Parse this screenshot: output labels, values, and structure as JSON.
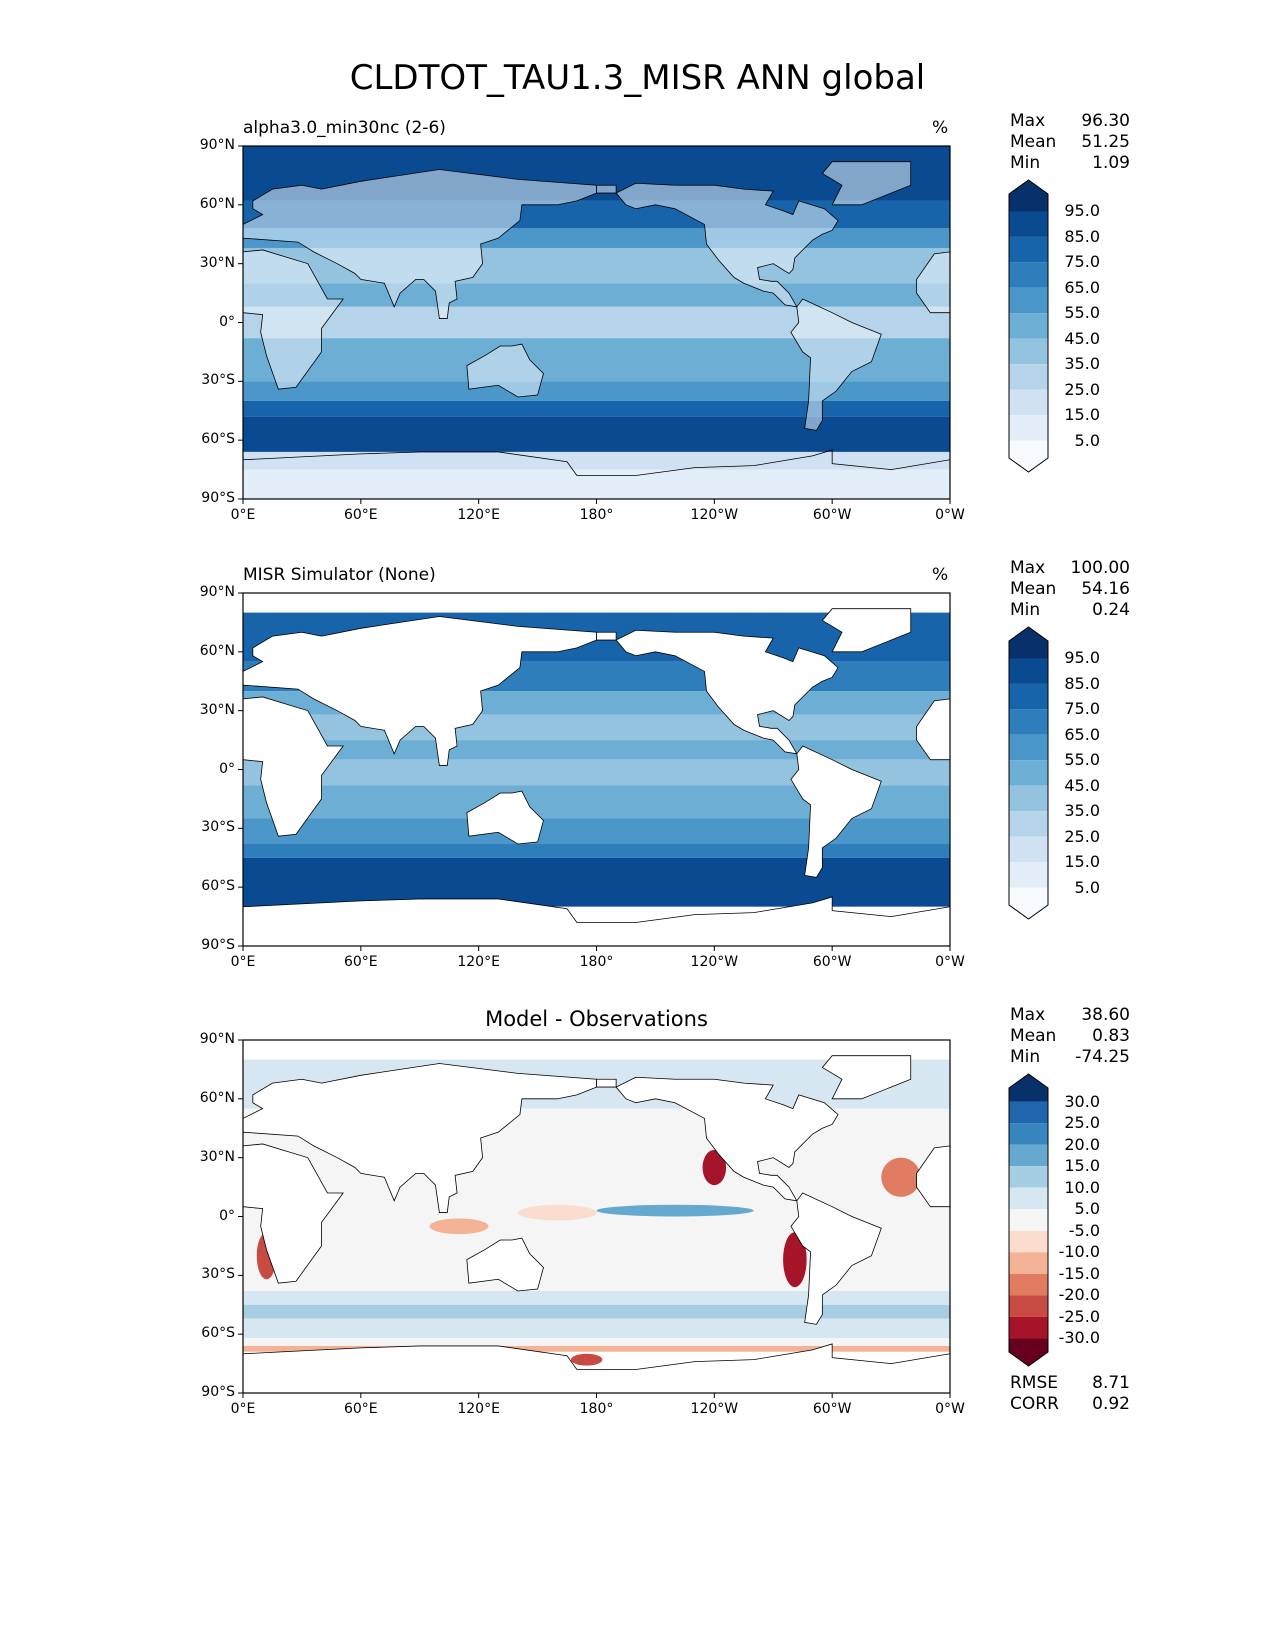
{
  "title": "CLDTOT_TAU1.3_MISR ANN global",
  "xticks": [
    "0°E",
    "60°E",
    "120°E",
    "180°",
    "120°W",
    "60°W",
    "0°W"
  ],
  "yticks": [
    "90°N",
    "60°N",
    "30°N",
    "0°",
    "30°S",
    "60°S",
    "90°S"
  ],
  "panels": [
    {
      "left_title": "alpha3.0_min30nc (2-6)",
      "center_title": "",
      "units": "%",
      "stats": [
        {
          "label": "Max",
          "value": "96.30"
        },
        {
          "label": "Mean",
          "value": "51.25"
        },
        {
          "label": "Min",
          "value": "1.09"
        }
      ],
      "colorbar": {
        "labels": [
          "95.0",
          "85.0",
          "75.0",
          "65.0",
          "55.0",
          "45.0",
          "35.0",
          "25.0",
          "15.0",
          "5.0"
        ],
        "colors": [
          "#08306b",
          "#0a4a90",
          "#1864aa",
          "#2f7ebc",
          "#4b97c9",
          "#6daed5",
          "#93c3df",
          "#b5d4e9",
          "#cfe1f2",
          "#e3eef9",
          "#f7fbff"
        ]
      }
    },
    {
      "left_title": "MISR Simulator (None)",
      "center_title": "",
      "units": "%",
      "stats": [
        {
          "label": "Max",
          "value": "100.00"
        },
        {
          "label": "Mean",
          "value": "54.16"
        },
        {
          "label": "Min",
          "value": "0.24"
        }
      ],
      "colorbar": {
        "labels": [
          "95.0",
          "85.0",
          "75.0",
          "65.0",
          "55.0",
          "45.0",
          "35.0",
          "25.0",
          "15.0",
          "5.0"
        ],
        "colors": [
          "#08306b",
          "#0a4a90",
          "#1864aa",
          "#2f7ebc",
          "#4b97c9",
          "#6daed5",
          "#93c3df",
          "#b5d4e9",
          "#cfe1f2",
          "#e3eef9",
          "#f7fbff"
        ]
      }
    },
    {
      "left_title": "",
      "center_title": "Model - Observations",
      "units": "",
      "stats": [
        {
          "label": "Max",
          "value": "38.60"
        },
        {
          "label": "Mean",
          "value": "0.83"
        },
        {
          "label": "Min",
          "value": "-74.25"
        }
      ],
      "extra_stats": [
        {
          "label": "RMSE",
          "value": "8.71"
        },
        {
          "label": "CORR",
          "value": "0.92"
        }
      ],
      "colorbar": {
        "labels": [
          "30.0",
          "25.0",
          "20.0",
          "15.0",
          "10.0",
          "5.0",
          "-5.0",
          "-10.0",
          "-15.0",
          "-20.0",
          "-25.0",
          "-30.0"
        ],
        "colors": [
          "#08306b",
          "#2166ac",
          "#3884bc",
          "#66a9cf",
          "#a6cee3",
          "#d6e7f1",
          "#f5f5f5",
          "#fbddcf",
          "#f4b396",
          "#e07c62",
          "#c74a43",
          "#a51429",
          "#67001f"
        ]
      }
    }
  ]
}
